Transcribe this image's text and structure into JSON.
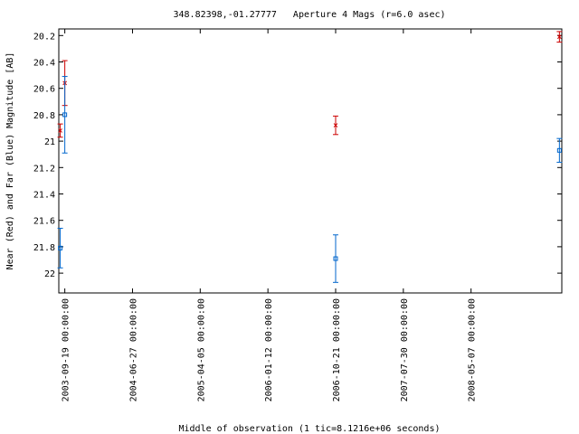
{
  "chart_data": {
    "type": "scatter",
    "title": "348.82398,-01.27777   Aperture 4 Mags (r=6.0 asec)",
    "xlabel": "Middle of observation (1 tic=8.1216e+06 seconds)",
    "ylabel": "Near (Red) and Far (Blue) Magnitude [AB]",
    "y_inverted": true,
    "ylim": [
      20.15,
      22.15
    ],
    "xlim": [
      "2003-08-25",
      "2009-05-20"
    ],
    "y_ticks": [
      "20.2",
      "20.4",
      "20.6",
      "20.8",
      "21",
      "21.2",
      "21.4",
      "21.6",
      "21.8",
      "22"
    ],
    "x_ticks": [
      {
        "date": "2003-09-19",
        "label": "2003-09-19 00:00:00"
      },
      {
        "date": "2004-06-27",
        "label": "2004-06-27 00:00:00"
      },
      {
        "date": "2005-04-05",
        "label": "2005-04-05 00:00:00"
      },
      {
        "date": "2006-01-12",
        "label": "2006-01-12 00:00:00"
      },
      {
        "date": "2006-10-21",
        "label": "2006-10-21 00:00:00"
      },
      {
        "date": "2007-07-30",
        "label": "2007-07-30 00:00:00"
      },
      {
        "date": "2008-05-07",
        "label": "2008-05-07 00:00:00"
      }
    ],
    "grid": false,
    "series": [
      {
        "color": "#cc0000",
        "marker": "x",
        "points": [
          {
            "x": "2003-08-31",
            "y": 20.92,
            "err": 0.05
          },
          {
            "x": "2003-09-19",
            "y": 20.56,
            "err": 0.17
          },
          {
            "x": "2006-10-21",
            "y": 20.88,
            "err": 0.07
          },
          {
            "x": "2009-05-10",
            "y": 20.21,
            "err": 0.04
          }
        ]
      },
      {
        "color": "#0066cc",
        "marker": "square",
        "points": [
          {
            "x": "2003-08-31",
            "y": 21.81,
            "err": 0.15
          },
          {
            "x": "2003-09-19",
            "y": 20.8,
            "err": 0.29
          },
          {
            "x": "2006-10-21",
            "y": 21.89,
            "err": 0.18
          },
          {
            "x": "2009-05-10",
            "y": 21.07,
            "err": 0.09
          }
        ]
      }
    ]
  }
}
